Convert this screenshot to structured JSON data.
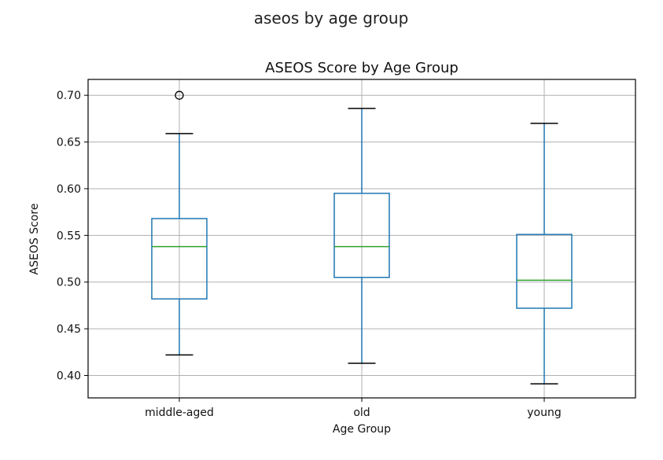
{
  "figure": {
    "suptitle": "aseos by age group"
  },
  "chart_data": {
    "type": "boxplot",
    "title": "ASEOS Score by Age Group",
    "xlabel": "Age Group",
    "ylabel": "ASEOS Score",
    "ylim": [
      0.376,
      0.717
    ],
    "yticks": [
      0.4,
      0.45,
      0.5,
      0.55,
      0.6,
      0.65,
      0.7
    ],
    "ytick_labels": [
      "0.40",
      "0.45",
      "0.50",
      "0.55",
      "0.60",
      "0.65",
      "0.70"
    ],
    "categories": [
      "middle-aged",
      "old",
      "young"
    ],
    "boxes": [
      {
        "category": "middle-aged",
        "whisker_low": 0.422,
        "q1": 0.482,
        "median": 0.538,
        "q3": 0.568,
        "whisker_high": 0.659,
        "outliers": [
          0.7
        ]
      },
      {
        "category": "old",
        "whisker_low": 0.413,
        "q1": 0.505,
        "median": 0.538,
        "q3": 0.595,
        "whisker_high": 0.686,
        "outliers": []
      },
      {
        "category": "young",
        "whisker_low": 0.391,
        "q1": 0.472,
        "median": 0.502,
        "q3": 0.551,
        "whisker_high": 0.67,
        "outliers": []
      }
    ],
    "grid": true,
    "box_color": "#1f77b4",
    "median_color": "#2ca02c",
    "outlier_color": "#000000"
  }
}
